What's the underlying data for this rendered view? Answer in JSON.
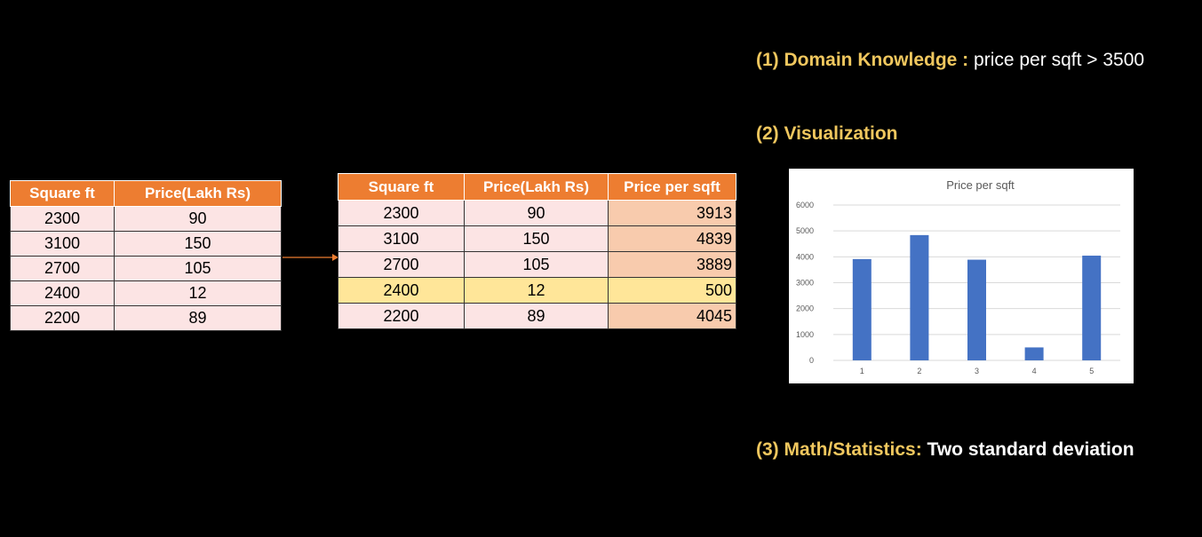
{
  "table_left": {
    "headers": [
      "Square ft",
      "Price(Lakh Rs)"
    ],
    "rows": [
      [
        "2300",
        "90"
      ],
      [
        "3100",
        "150"
      ],
      [
        "2700",
        "105"
      ],
      [
        "2400",
        "12"
      ],
      [
        "2200",
        "89"
      ]
    ]
  },
  "table_right": {
    "headers": [
      "Square ft",
      "Price(Lakh Rs)",
      "Price per sqft"
    ],
    "rows": [
      [
        "2300",
        "90",
        "3913"
      ],
      [
        "3100",
        "150",
        "4839"
      ],
      [
        "2700",
        "105",
        "3889"
      ],
      [
        "2400",
        "12",
        "500"
      ],
      [
        "2200",
        "89",
        "4045"
      ]
    ],
    "highlight_row": 3,
    "colors": {
      "header": "#ed7d31",
      "cell": "#fce4e4",
      "pps_cell": "#f8cbad",
      "highlight": "#ffe699"
    }
  },
  "headings": {
    "domain_label": "(1) Domain Knowledge :",
    "domain_text": "price per sqft > 3500",
    "visualization_label": "(2) Visualization",
    "math_label": "(3) Math/Statistics:",
    "math_text": "Two standard deviation"
  },
  "chart_data": {
    "type": "bar",
    "title": "Price per sqft",
    "categories": [
      "1",
      "2",
      "3",
      "4",
      "5"
    ],
    "values": [
      3913,
      4839,
      3889,
      500,
      4045
    ],
    "ylim": [
      0,
      6000
    ],
    "yticks": [
      "0",
      "1000",
      "2000",
      "3000",
      "4000",
      "5000",
      "6000"
    ],
    "grid": true,
    "bar_color": "#4472c4",
    "xlabel": "",
    "ylabel": ""
  }
}
